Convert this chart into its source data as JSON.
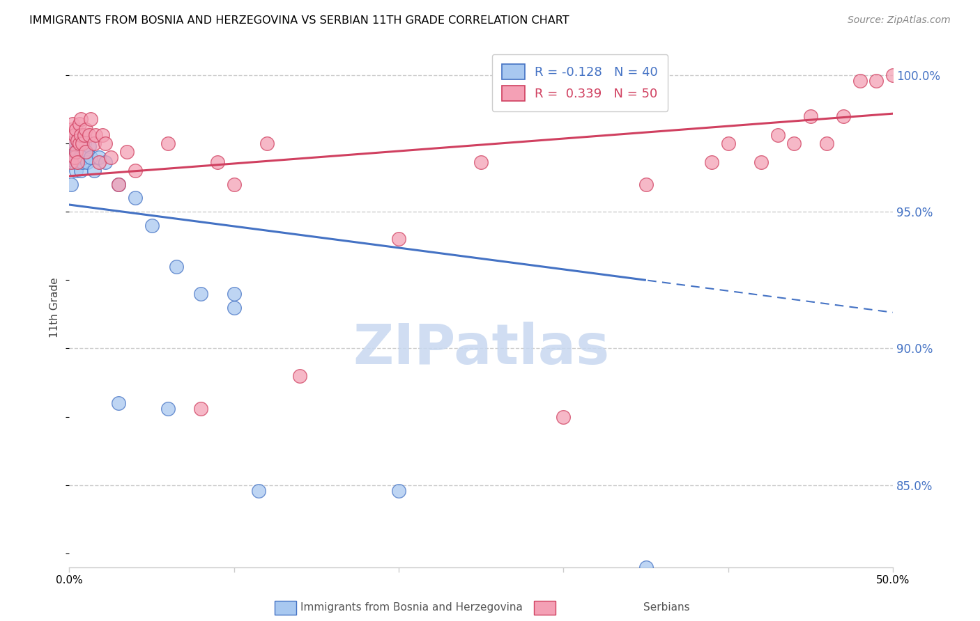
{
  "title": "IMMIGRANTS FROM BOSNIA AND HERZEGOVINA VS SERBIAN 11TH GRADE CORRELATION CHART",
  "source": "Source: ZipAtlas.com",
  "ylabel": "11th Grade",
  "ylabel_ticks": [
    85.0,
    90.0,
    95.0,
    100.0
  ],
  "ylabel_tick_labels": [
    "85.0%",
    "90.0%",
    "95.0%",
    "100.0%"
  ],
  "blue_label": "Immigrants from Bosnia and Herzegovina",
  "pink_label": "Serbians",
  "blue_R": -0.128,
  "blue_N": 40,
  "pink_R": 0.339,
  "pink_N": 50,
  "blue_color": "#A8C8F0",
  "pink_color": "#F4A0B5",
  "trend_blue": "#4472C4",
  "trend_pink": "#D04060",
  "blue_scatter_x": [
    0.001,
    0.001,
    0.002,
    0.002,
    0.003,
    0.003,
    0.003,
    0.004,
    0.004,
    0.005,
    0.005,
    0.005,
    0.006,
    0.006,
    0.007,
    0.007,
    0.007,
    0.008,
    0.008,
    0.009,
    0.009,
    0.01,
    0.011,
    0.012,
    0.013,
    0.015,
    0.018,
    0.022,
    0.03,
    0.04,
    0.05,
    0.065,
    0.08,
    0.1,
    0.03,
    0.06,
    0.1,
    0.115,
    0.2,
    0.35
  ],
  "blue_scatter_y": [
    0.97,
    0.96,
    0.97,
    0.975,
    0.968,
    0.972,
    0.976,
    0.965,
    0.972,
    0.968,
    0.972,
    0.976,
    0.97,
    0.974,
    0.965,
    0.97,
    0.975,
    0.968,
    0.973,
    0.97,
    0.975,
    0.972,
    0.968,
    0.974,
    0.97,
    0.965,
    0.97,
    0.968,
    0.96,
    0.955,
    0.945,
    0.93,
    0.92,
    0.915,
    0.88,
    0.878,
    0.92,
    0.848,
    0.848,
    0.82
  ],
  "pink_scatter_x": [
    0.001,
    0.001,
    0.002,
    0.002,
    0.003,
    0.003,
    0.004,
    0.004,
    0.005,
    0.005,
    0.006,
    0.006,
    0.007,
    0.007,
    0.008,
    0.009,
    0.01,
    0.01,
    0.012,
    0.013,
    0.015,
    0.016,
    0.018,
    0.02,
    0.022,
    0.025,
    0.03,
    0.035,
    0.04,
    0.06,
    0.08,
    0.09,
    0.1,
    0.12,
    0.14,
    0.2,
    0.25,
    0.3,
    0.35,
    0.39,
    0.4,
    0.42,
    0.43,
    0.44,
    0.45,
    0.46,
    0.47,
    0.48,
    0.49,
    0.5
  ],
  "pink_scatter_y": [
    0.968,
    0.98,
    0.975,
    0.982,
    0.97,
    0.978,
    0.972,
    0.98,
    0.968,
    0.976,
    0.975,
    0.982,
    0.978,
    0.984,
    0.975,
    0.978,
    0.972,
    0.98,
    0.978,
    0.984,
    0.975,
    0.978,
    0.968,
    0.978,
    0.975,
    0.97,
    0.96,
    0.972,
    0.965,
    0.975,
    0.878,
    0.968,
    0.96,
    0.975,
    0.89,
    0.94,
    0.968,
    0.875,
    0.96,
    0.968,
    0.975,
    0.968,
    0.978,
    0.975,
    0.985,
    0.975,
    0.985,
    0.998,
    0.998,
    1.0
  ],
  "xmin": 0.0,
  "xmax": 0.5,
  "ymin": 0.82,
  "ymax": 1.01,
  "watermark_text": "ZIPatlas",
  "watermark_color": "#C8D8F0",
  "grid_color": "#CCCCCC",
  "spine_color": "#CCCCCC"
}
